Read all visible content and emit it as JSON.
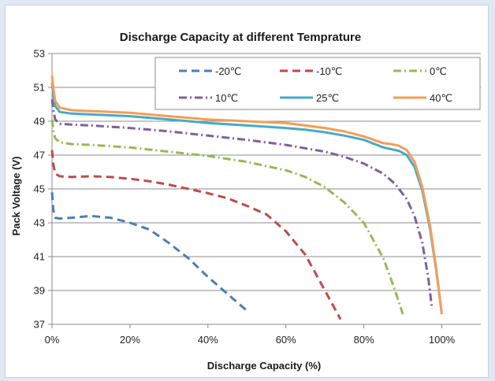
{
  "chart_data": {
    "type": "line",
    "title": "Discharge Capacity at different Temprature",
    "xlabel": "Discharge Capacity (%)",
    "ylabel": "Pack Voltage (V)",
    "xlim": [
      0,
      110
    ],
    "ylim": [
      37,
      53
    ],
    "xticks": [
      0,
      20,
      40,
      60,
      80,
      100
    ],
    "xtick_labels": [
      "0%",
      "20%",
      "40%",
      "60%",
      "80%",
      "100%"
    ],
    "yticks": [
      37,
      39,
      41,
      43,
      45,
      47,
      49,
      51,
      53
    ],
    "ytick_labels": [
      "37",
      "39",
      "41",
      "43",
      "45",
      "47",
      "49",
      "51",
      "53"
    ],
    "grid": "horizontal",
    "legend_position": "top-right",
    "series": [
      {
        "name": "-20℃",
        "color": "#4a7ebb",
        "dash": "dash",
        "x": [
          0,
          0.3,
          0.8,
          2,
          5,
          10,
          15,
          20,
          25,
          30,
          35,
          40,
          45,
          50
        ],
        "y": [
          44.8,
          43.8,
          43.3,
          43.25,
          43.3,
          43.4,
          43.3,
          43.0,
          42.6,
          41.8,
          40.9,
          39.8,
          38.8,
          37.8
        ]
      },
      {
        "name": "-10℃",
        "color": "#be4b48",
        "dash": "dash",
        "x": [
          0,
          0.3,
          0.8,
          2,
          5,
          10,
          15,
          20,
          25,
          30,
          35,
          40,
          45,
          50,
          55,
          60,
          65,
          70,
          74
        ],
        "y": [
          47.3,
          46.5,
          45.9,
          45.75,
          45.7,
          45.75,
          45.7,
          45.6,
          45.45,
          45.25,
          45.0,
          44.75,
          44.45,
          44.0,
          43.5,
          42.5,
          41.1,
          39.0,
          37.3
        ]
      },
      {
        "name": "0℃",
        "color": "#98b954",
        "dash": "dashdot",
        "x": [
          0,
          0.3,
          0.8,
          2,
          5,
          10,
          20,
          30,
          40,
          50,
          55,
          60,
          65,
          70,
          75,
          80,
          85,
          88,
          90
        ],
        "y": [
          49.1,
          48.5,
          48.0,
          47.75,
          47.65,
          47.6,
          47.45,
          47.2,
          46.95,
          46.6,
          46.35,
          46.1,
          45.7,
          45.1,
          44.2,
          43.0,
          40.9,
          39.0,
          37.6
        ]
      },
      {
        "name": "10℃",
        "color": "#7d60a0",
        "dash": "dashdot",
        "x": [
          0,
          0.3,
          0.8,
          2,
          5,
          10,
          20,
          30,
          40,
          50,
          60,
          70,
          75,
          80,
          85,
          88,
          91,
          93,
          95,
          96.5,
          97.5
        ],
        "y": [
          50.3,
          49.7,
          49.1,
          48.85,
          48.8,
          48.75,
          48.6,
          48.4,
          48.15,
          47.9,
          47.6,
          47.2,
          46.9,
          46.5,
          45.9,
          45.3,
          44.4,
          43.4,
          41.8,
          39.8,
          37.9
        ]
      },
      {
        "name": "25℃",
        "color": "#46aac5",
        "dash": "solid",
        "x": [
          0,
          0.3,
          0.8,
          2,
          5,
          10,
          20,
          30,
          40,
          50,
          60,
          65,
          70,
          75,
          80,
          85,
          87,
          89,
          91,
          93,
          95,
          97,
          98.5,
          99.5,
          100
        ],
        "y": [
          51.3,
          50.6,
          49.9,
          49.55,
          49.45,
          49.4,
          49.3,
          49.1,
          48.9,
          48.75,
          48.6,
          48.5,
          48.35,
          48.15,
          47.9,
          47.45,
          47.35,
          47.25,
          47.0,
          46.3,
          44.9,
          42.6,
          40.3,
          38.5,
          37.6
        ]
      },
      {
        "name": "40℃",
        "color": "#f59d56",
        "dash": "solid",
        "x": [
          0,
          0.3,
          0.8,
          2,
          5,
          10,
          20,
          30,
          40,
          50,
          60,
          65,
          70,
          75,
          80,
          85,
          87,
          89,
          91,
          93,
          95,
          97,
          98.5,
          99.5,
          100
        ],
        "y": [
          51.7,
          51.0,
          50.2,
          49.8,
          49.65,
          49.6,
          49.5,
          49.3,
          49.1,
          49.0,
          48.9,
          48.75,
          48.6,
          48.4,
          48.1,
          47.7,
          47.65,
          47.55,
          47.3,
          46.6,
          45.1,
          42.8,
          40.4,
          38.5,
          37.6
        ]
      }
    ]
  }
}
